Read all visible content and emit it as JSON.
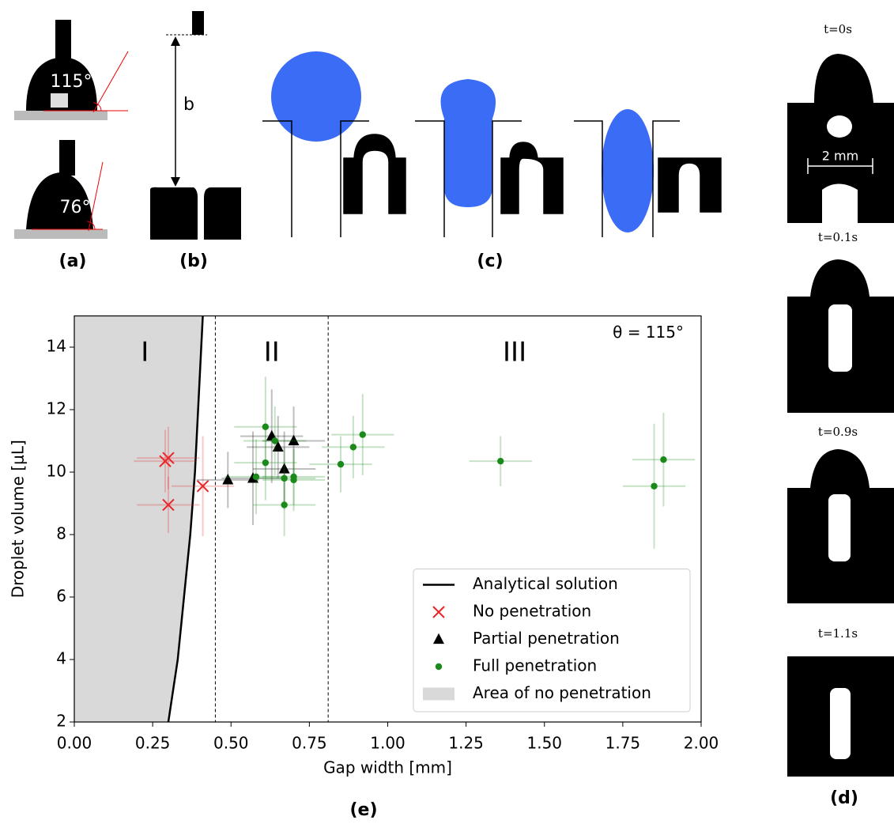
{
  "panels": {
    "a": {
      "label": "(a)",
      "angle_top": "115°",
      "angle_bottom": "76°"
    },
    "b": {
      "label": "(b)",
      "distance": "b"
    },
    "c": {
      "label": "(c)"
    },
    "d": {
      "label": "(d)",
      "times": [
        "t=0s",
        "t=0.1s",
        "t=0.9s",
        "t=1.1s"
      ],
      "scale": "2 mm"
    }
  },
  "chart_data": {
    "type": "scatter",
    "panel_label": "(e)",
    "x_label": "Gap width [mm]",
    "y_label": "Droplet volume [μL]",
    "annotation": "θ = 115°",
    "regions": [
      "I",
      "II",
      "III"
    ],
    "boundaries": [
      0.45,
      0.81
    ],
    "xlim": [
      0,
      2
    ],
    "ylim": [
      2,
      15
    ],
    "xticks": [
      {
        "value": 0,
        "label": "0.00"
      },
      {
        "value": 0.25,
        "label": "0.25"
      },
      {
        "value": 0.5,
        "label": "0.50"
      },
      {
        "value": 0.75,
        "label": "0.75"
      },
      {
        "value": 1,
        "label": "1.00"
      },
      {
        "value": 1.25,
        "label": "1.25"
      },
      {
        "value": 1.5,
        "label": "1.50"
      },
      {
        "value": 1.75,
        "label": "1.75"
      },
      {
        "value": 2,
        "label": "2.00"
      }
    ],
    "yticks": [
      2,
      4,
      6,
      8,
      10,
      12,
      14
    ],
    "legend": "lower right",
    "curve": {
      "name": "Analytical solution",
      "color": "#000000",
      "x": [
        0.3,
        0.33,
        0.35,
        0.37,
        0.385,
        0.395,
        0.405,
        0.41
      ],
      "values": [
        2,
        4,
        6,
        8,
        10,
        12,
        14,
        15
      ]
    },
    "area": {
      "name": "Area of no penetration",
      "color": "#d9d9d9"
    },
    "series": [
      {
        "name": "No penetration",
        "color": "#e8262a",
        "marker": "x",
        "x": [
          0.29,
          0.3,
          0.3,
          0.41
        ],
        "values": [
          10.35,
          10.45,
          8.95,
          9.55
        ],
        "x_err": [
          0.1,
          0.1,
          0.1,
          0.1
        ],
        "y_err": [
          1.0,
          1.0,
          0.9,
          1.6
        ]
      },
      {
        "name": "Partial penetration",
        "color": "#000000",
        "marker": "triangle",
        "x": [
          0.49,
          0.57,
          0.63,
          0.65,
          0.67,
          0.7
        ],
        "values": [
          9.75,
          9.8,
          11.15,
          10.8,
          10.1,
          11.0
        ],
        "x_err": [
          0.1,
          0.1,
          0.1,
          0.1,
          0.1,
          0.1
        ],
        "y_err": [
          0.9,
          1.5,
          1.5,
          1.0,
          1.2,
          1.1
        ]
      },
      {
        "name": "Full penetration",
        "color": "#1a8a1a",
        "marker": "dot",
        "x": [
          0.58,
          0.61,
          0.61,
          0.64,
          0.67,
          0.67,
          0.7,
          0.7,
          0.85,
          0.89,
          0.92,
          1.36,
          1.85,
          1.88
        ],
        "values": [
          9.85,
          11.45,
          10.3,
          11.0,
          9.8,
          8.95,
          9.85,
          9.75,
          10.25,
          10.8,
          11.2,
          10.35,
          9.55,
          10.4
        ],
        "x_err": [
          0.1,
          0.1,
          0.1,
          0.1,
          0.1,
          0.1,
          0.1,
          0.1,
          0.1,
          0.1,
          0.1,
          0.1,
          0.1,
          0.1
        ],
        "y_err": [
          1.2,
          1.6,
          1.2,
          1.1,
          1.0,
          1.0,
          0.9,
          1.0,
          0.9,
          1.0,
          1.3,
          0.8,
          2.0,
          1.5
        ]
      }
    ]
  }
}
